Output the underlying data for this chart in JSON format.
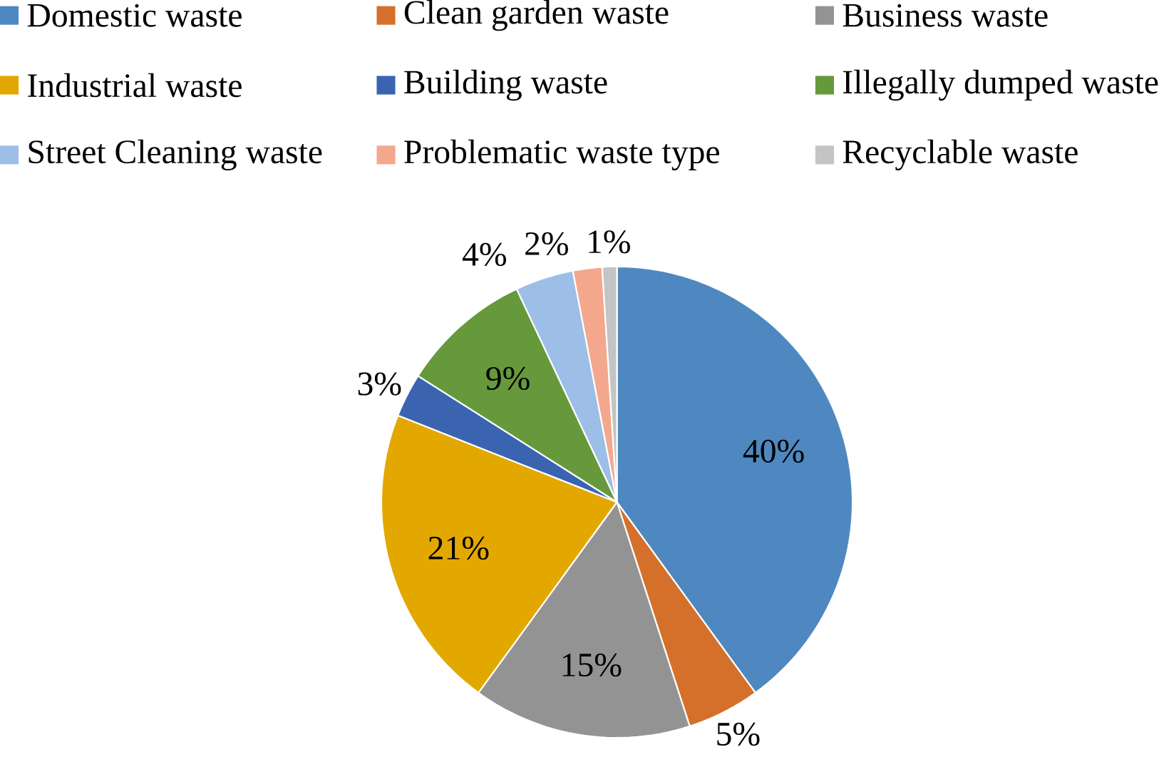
{
  "chart_data": {
    "type": "pie",
    "categories": [
      "Domestic waste",
      "Clean garden waste",
      "Business waste",
      "Industrial waste",
      "Building waste",
      "Illegally dumped waste",
      "Street Cleaning waste",
      "Problematic waste type",
      "Recyclable waste"
    ],
    "values": [
      40,
      5,
      15,
      21,
      3,
      9,
      4,
      2,
      1
    ],
    "value_labels": [
      "40%",
      "5%",
      "15%",
      "21%",
      "3%",
      "9%",
      "4%",
      "2%",
      "1%"
    ],
    "colors": [
      "#4f88c0",
      "#d5702b",
      "#939393",
      "#e3a800",
      "#3b64b0",
      "#66993c",
      "#9dbee6",
      "#f3a88e",
      "#c4c4c4"
    ],
    "legend": "top"
  }
}
